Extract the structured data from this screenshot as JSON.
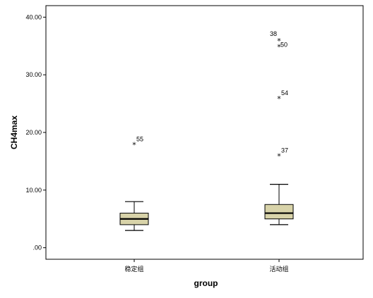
{
  "chart_data": {
    "type": "box",
    "title": "",
    "xlabel": "group",
    "ylabel": "CH4max",
    "ylim": [
      -2.0,
      42.0
    ],
    "y_ticks": [
      0,
      10,
      20,
      30,
      40
    ],
    "y_tick_labels": [
      ".00",
      "10.00",
      "20.00",
      "30.00",
      "40.00"
    ],
    "grid": false,
    "categories": [
      "稳定组",
      "活动组"
    ],
    "box_fill": "#d8d3a9",
    "groups": [
      {
        "category": "稳定组",
        "whisker_low": 3.0,
        "q1": 4.0,
        "median": 5.0,
        "q3": 6.0,
        "whisker_high": 8.0,
        "outliers": [
          {
            "label": "55",
            "value": 18.0
          }
        ]
      },
      {
        "category": "活动组",
        "whisker_low": 4.0,
        "q1": 5.0,
        "median": 6.0,
        "q3": 7.5,
        "whisker_high": 11.0,
        "outliers": [
          {
            "label": "37",
            "value": 16.0
          },
          {
            "label": "54",
            "value": 26.0
          },
          {
            "label": "50",
            "value": 35.0
          },
          {
            "label": "38",
            "value": 36.0
          }
        ]
      }
    ]
  }
}
